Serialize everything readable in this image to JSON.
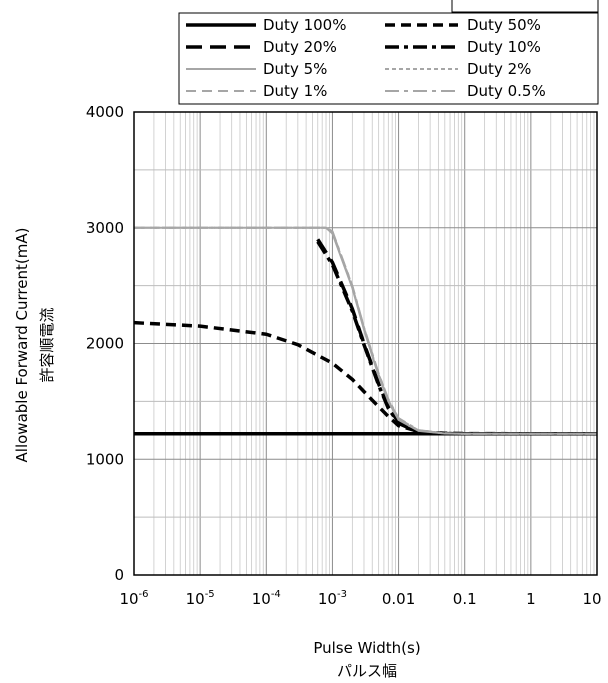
{
  "chart_data": {
    "type": "line",
    "x_scale": "log",
    "xlim": [
      1e-06,
      10
    ],
    "ylim": [
      0,
      4000
    ],
    "x_ticks": [
      1e-06,
      1e-05,
      0.0001,
      0.001,
      0.01,
      0.1,
      1,
      10
    ],
    "x_tick_labels": [
      {
        "base": "10",
        "exp": "-6"
      },
      {
        "base": "10",
        "exp": "-5"
      },
      {
        "base": "10",
        "exp": "-4"
      },
      {
        "base": "10",
        "exp": "-3"
      },
      {
        "base": "0.01",
        "exp": ""
      },
      {
        "base": "0.1",
        "exp": ""
      },
      {
        "base": "1",
        "exp": ""
      },
      {
        "base": "10",
        "exp": ""
      }
    ],
    "y_ticks": [
      0,
      1000,
      2000,
      3000,
      4000
    ],
    "y_tick_labels": [
      "0",
      "1000",
      "2000",
      "3000",
      "4000"
    ],
    "xlabel": "Pulse Width(s)",
    "xlabel_jp": "パルス幅",
    "ylabel": "Allowable Forward Current(mA)",
    "ylabel_jp": "許容順電流",
    "grid": true,
    "legend_position": "top",
    "series": [
      {
        "name": "Duty 100%",
        "color": "#000000",
        "dash": "solid",
        "width": "thick",
        "x": [
          1e-06,
          10
        ],
        "y": [
          1220,
          1220
        ]
      },
      {
        "name": "Duty 50%",
        "color": "#000000",
        "dash": "dash",
        "width": "thick",
        "x": [
          1e-06,
          1e-05,
          0.0001,
          0.0003,
          0.001,
          0.002,
          0.004,
          0.007,
          0.01,
          0.02,
          0.05,
          0.1,
          1,
          10
        ],
        "y": [
          2180,
          2150,
          2080,
          1990,
          1830,
          1690,
          1510,
          1370,
          1290,
          1240,
          1225,
          1222,
          1220,
          1220
        ]
      },
      {
        "name": "Duty 20%",
        "color": "#000000",
        "dash": "longdash",
        "width": "thick",
        "x": [
          0.0006,
          0.001,
          0.002,
          0.003,
          0.005,
          0.007,
          0.01,
          0.02,
          0.05,
          0.1,
          1,
          10
        ],
        "y": [
          2900,
          2700,
          2300,
          2000,
          1650,
          1450,
          1320,
          1240,
          1222,
          1220,
          1220,
          1220
        ]
      },
      {
        "name": "Duty 10%",
        "color": "#000000",
        "dash": "dashdot",
        "width": "thick",
        "x": [
          0.0006,
          0.001,
          0.002,
          0.003,
          0.005,
          0.007,
          0.01,
          0.02,
          0.05,
          0.1,
          1,
          10
        ],
        "y": [
          2880,
          2680,
          2280,
          1990,
          1640,
          1440,
          1310,
          1235,
          1222,
          1220,
          1220,
          1220
        ]
      },
      {
        "name": "Duty 5%",
        "color": "#a6a6a6",
        "dash": "solid",
        "width": "normal",
        "x": [
          1e-06,
          0.0008,
          0.001,
          0.002,
          0.003,
          0.005,
          0.007,
          0.01,
          0.02,
          0.05,
          0.1,
          1,
          10
        ],
        "y": [
          3000,
          3000,
          2950,
          2480,
          2120,
          1720,
          1500,
          1340,
          1245,
          1222,
          1220,
          1220,
          1220
        ]
      },
      {
        "name": "Duty 2%",
        "color": "#a6a6a6",
        "dash": "shortdash",
        "width": "normal",
        "x": [
          1e-06,
          0.0008,
          0.001,
          0.002,
          0.003,
          0.005,
          0.007,
          0.01,
          0.02,
          0.05,
          0.1,
          1,
          10
        ],
        "y": [
          3000,
          3000,
          2960,
          2490,
          2130,
          1730,
          1510,
          1345,
          1248,
          1223,
          1220,
          1220,
          1220
        ]
      },
      {
        "name": "Duty 1%",
        "color": "#a6a6a6",
        "dash": "dash",
        "width": "normal",
        "x": [
          1e-06,
          0.0008,
          0.001,
          0.002,
          0.003,
          0.005,
          0.007,
          0.01,
          0.02,
          0.05,
          0.1,
          1,
          10
        ],
        "y": [
          3000,
          3000,
          2965,
          2495,
          2135,
          1735,
          1515,
          1350,
          1250,
          1224,
          1220,
          1220,
          1220
        ]
      },
      {
        "name": "Duty 0.5%",
        "color": "#a6a6a6",
        "dash": "dashdot",
        "width": "normal",
        "x": [
          1e-06,
          0.0008,
          0.001,
          0.002,
          0.003,
          0.005,
          0.007,
          0.01,
          0.02,
          0.05,
          0.1,
          1,
          10
        ],
        "y": [
          3000,
          3000,
          2970,
          2500,
          2140,
          1740,
          1520,
          1355,
          1252,
          1225,
          1220,
          1220,
          1220
        ]
      }
    ]
  }
}
